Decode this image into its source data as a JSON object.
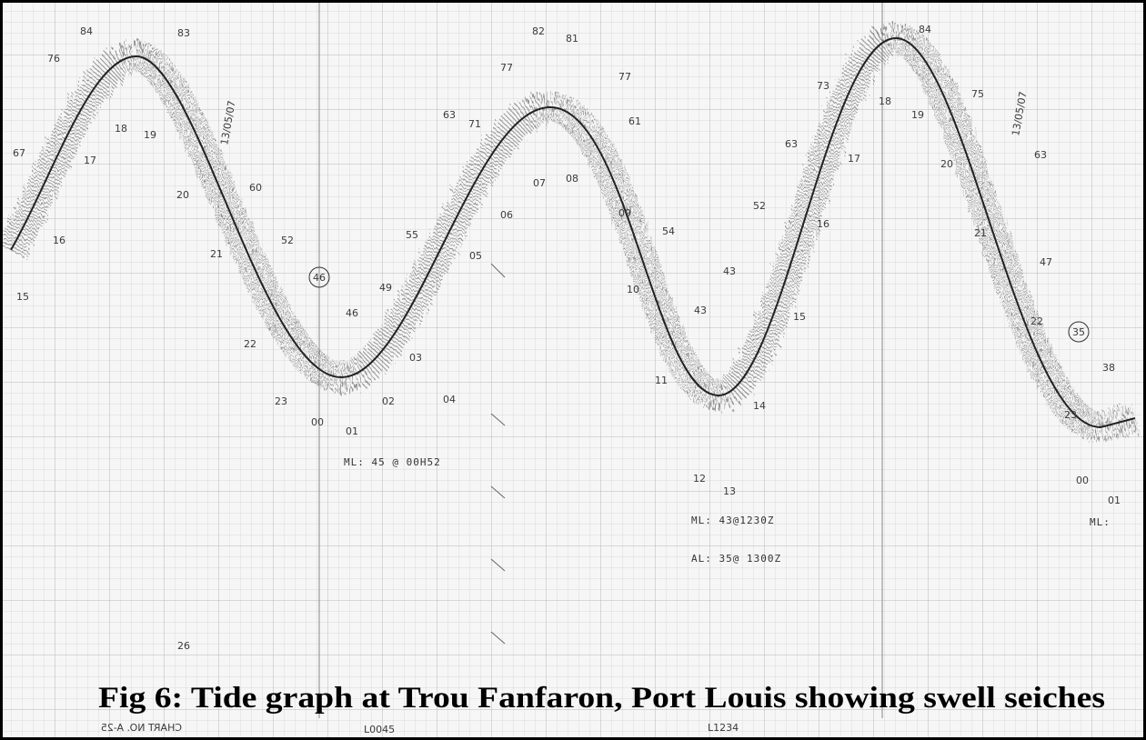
{
  "caption": "Fig 6: Tide graph at Trou Fanfaron, Port Louis showing swell seiches",
  "annotations": [
    "76",
    "84",
    "83",
    "67",
    "17",
    "16",
    "15",
    "18",
    "19",
    "20",
    "21",
    "60",
    "52",
    "46",
    "22",
    "23",
    "00",
    "46",
    "49",
    "55",
    "01",
    "02",
    "03",
    "63",
    "04",
    "05",
    "71",
    "77",
    "06",
    "82",
    "81",
    "07",
    "08",
    "77",
    "09",
    "61",
    "54",
    "10",
    "43",
    "43",
    "11",
    "52",
    "12",
    "13",
    "14",
    "15",
    "16",
    "63",
    "73",
    "17",
    "18",
    "19",
    "84",
    "20",
    "75",
    "21",
    "63",
    "47",
    "35",
    "22",
    "23",
    "38",
    "00",
    "01",
    "ML: 45 @ 00H52",
    "ML: 43@1230Z",
    "AL: 35@ 1300Z",
    "ML:",
    "26",
    "L0045",
    "L1234",
    "CHART NO. A-25",
    "13/05/07",
    "13/05/07"
  ]
}
